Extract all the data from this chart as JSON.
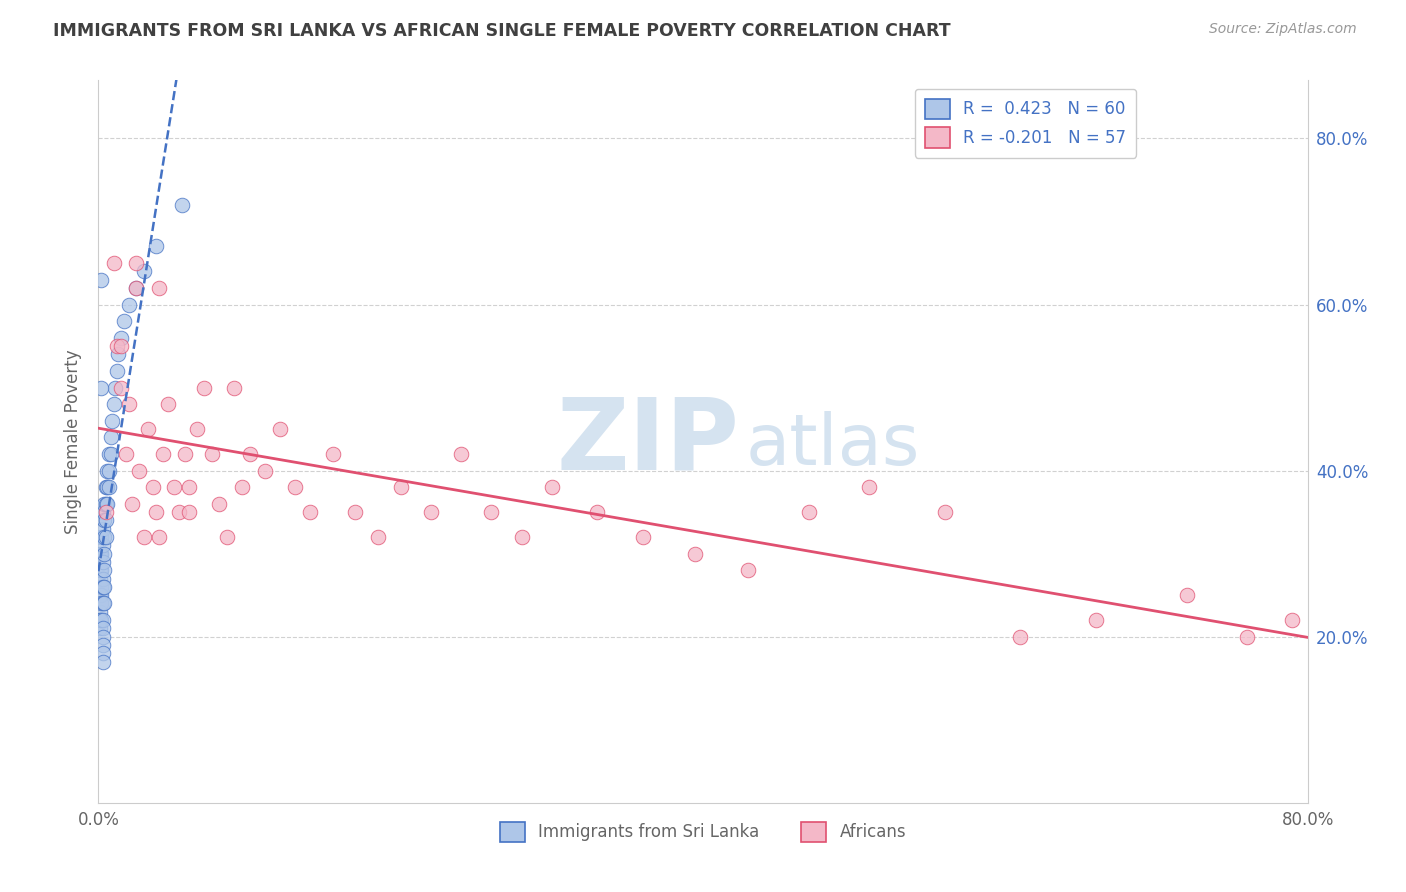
{
  "title": "IMMIGRANTS FROM SRI LANKA VS AFRICAN SINGLE FEMALE POVERTY CORRELATION CHART",
  "source": "Source: ZipAtlas.com",
  "ylabel": "Single Female Poverty",
  "legend_entries": [
    "Immigrants from Sri Lanka",
    "Africans"
  ],
  "r_sri_lanka": 0.423,
  "n_sri_lanka": 60,
  "r_africans": -0.201,
  "n_africans": 57,
  "blue_color": "#aec6e8",
  "blue_line_color": "#4472c4",
  "pink_color": "#f4b8c8",
  "pink_line_color": "#e05070",
  "watermark_zip": "ZIP",
  "watermark_atlas": "atlas",
  "watermark_color": "#d5e3f0",
  "background_color": "#ffffff",
  "title_color": "#404040",
  "right_tick_color": "#4472c4",
  "xmin": 0.0,
  "xmax": 0.8,
  "ymin": 0.0,
  "ymax": 0.87,
  "sri_lanka_x": [
    0.001,
    0.001,
    0.001,
    0.001,
    0.001,
    0.001,
    0.001,
    0.002,
    0.002,
    0.002,
    0.002,
    0.002,
    0.002,
    0.002,
    0.003,
    0.003,
    0.003,
    0.003,
    0.003,
    0.003,
    0.003,
    0.003,
    0.003,
    0.003,
    0.003,
    0.003,
    0.003,
    0.004,
    0.004,
    0.004,
    0.004,
    0.004,
    0.004,
    0.004,
    0.005,
    0.005,
    0.005,
    0.005,
    0.006,
    0.006,
    0.006,
    0.007,
    0.007,
    0.007,
    0.008,
    0.008,
    0.009,
    0.01,
    0.011,
    0.012,
    0.013,
    0.015,
    0.017,
    0.02,
    0.025,
    0.03,
    0.038,
    0.055,
    0.002,
    0.002
  ],
  "sri_lanka_y": [
    0.28,
    0.3,
    0.27,
    0.25,
    0.23,
    0.22,
    0.21,
    0.32,
    0.3,
    0.28,
    0.26,
    0.25,
    0.24,
    0.22,
    0.35,
    0.33,
    0.31,
    0.29,
    0.27,
    0.26,
    0.24,
    0.22,
    0.21,
    0.2,
    0.19,
    0.18,
    0.17,
    0.36,
    0.34,
    0.32,
    0.3,
    0.28,
    0.26,
    0.24,
    0.38,
    0.36,
    0.34,
    0.32,
    0.4,
    0.38,
    0.36,
    0.42,
    0.4,
    0.38,
    0.44,
    0.42,
    0.46,
    0.48,
    0.5,
    0.52,
    0.54,
    0.56,
    0.58,
    0.6,
    0.62,
    0.64,
    0.67,
    0.72,
    0.63,
    0.5
  ],
  "africans_x": [
    0.005,
    0.01,
    0.012,
    0.015,
    0.018,
    0.02,
    0.022,
    0.025,
    0.027,
    0.03,
    0.033,
    0.036,
    0.038,
    0.04,
    0.043,
    0.046,
    0.05,
    0.053,
    0.057,
    0.06,
    0.065,
    0.07,
    0.075,
    0.08,
    0.085,
    0.09,
    0.095,
    0.1,
    0.11,
    0.12,
    0.13,
    0.14,
    0.155,
    0.17,
    0.185,
    0.2,
    0.22,
    0.24,
    0.26,
    0.28,
    0.3,
    0.33,
    0.36,
    0.395,
    0.43,
    0.47,
    0.51,
    0.56,
    0.61,
    0.66,
    0.72,
    0.76,
    0.79,
    0.015,
    0.025,
    0.04,
    0.06
  ],
  "africans_y": [
    0.35,
    0.65,
    0.55,
    0.5,
    0.42,
    0.48,
    0.36,
    0.65,
    0.4,
    0.32,
    0.45,
    0.38,
    0.35,
    0.62,
    0.42,
    0.48,
    0.38,
    0.35,
    0.42,
    0.38,
    0.45,
    0.5,
    0.42,
    0.36,
    0.32,
    0.5,
    0.38,
    0.42,
    0.4,
    0.45,
    0.38,
    0.35,
    0.42,
    0.35,
    0.32,
    0.38,
    0.35,
    0.42,
    0.35,
    0.32,
    0.38,
    0.35,
    0.32,
    0.3,
    0.28,
    0.35,
    0.38,
    0.35,
    0.2,
    0.22,
    0.25,
    0.2,
    0.22,
    0.55,
    0.62,
    0.32,
    0.35
  ]
}
